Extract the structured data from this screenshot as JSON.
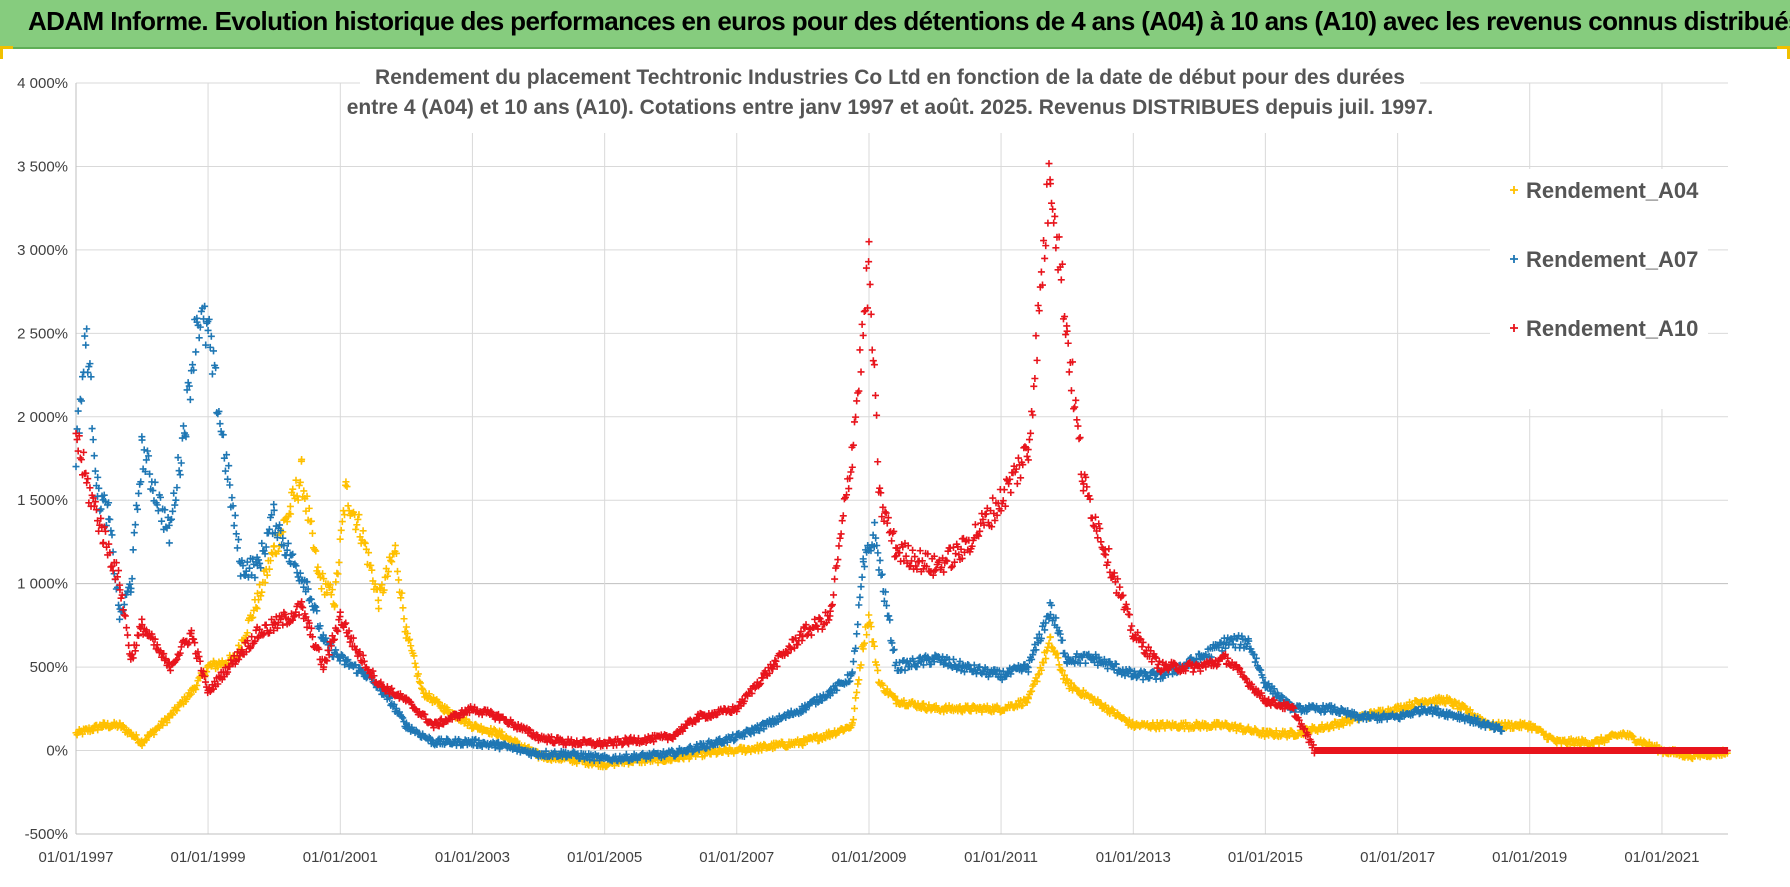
{
  "banner": {
    "text": "ADAM Informe. Evolution historique des performances en euros pour des détentions de 4 ans (A04) à 10 ans (A10) avec les revenus connus distribués"
  },
  "colors": {
    "banner_bg": "#86cc7e",
    "grid": "#d9d9d9",
    "A04": "#ffc000",
    "A07": "#1f77b4",
    "A10": "#e8141c"
  },
  "chart_data": {
    "type": "scatter",
    "title_lines": [
      "Rendement du placement Techtronic Industries Co Ltd en fonction de la date de début pour des durées",
      "entre 4 (A04) et 10 ans (A10).  Cotations entre janv 1997 et août. 2025. Revenus DISTRIBUES depuis juil. 1997."
    ],
    "x_ticks": [
      "01/01/1997",
      "01/01/1999",
      "01/01/2001",
      "01/01/2003",
      "01/01/2005",
      "01/01/2007",
      "01/01/2009",
      "01/01/2011",
      "01/01/2013",
      "01/01/2015",
      "01/01/2017",
      "01/01/2019",
      "01/01/2021"
    ],
    "xlim": [
      "1997-01-01",
      "2022-01-01"
    ],
    "y_ticks": [
      "4 000%",
      "3 500%",
      "3 000%",
      "2 500%",
      "2 000%",
      "1 500%",
      "1 000%",
      "500%",
      "0%",
      "-500%"
    ],
    "ylim": [
      -500,
      4000
    ],
    "grid": true,
    "legend_position": "top-right",
    "marker": "+",
    "series": [
      {
        "name": "Rendement_A04",
        "color": "#ffc000",
        "points": [
          [
            "1997-01-01",
            100
          ],
          [
            "1997-06-01",
            150
          ],
          [
            "1997-09-01",
            150
          ],
          [
            "1998-01-01",
            50
          ],
          [
            "1998-06-01",
            200
          ],
          [
            "1998-10-01",
            350
          ],
          [
            "1999-01-01",
            500
          ],
          [
            "1999-06-01",
            550
          ],
          [
            "1999-10-01",
            900
          ],
          [
            "2000-01-01",
            1200
          ],
          [
            "2000-04-01",
            1450
          ],
          [
            "2000-06-01",
            1650
          ],
          [
            "2000-09-01",
            1050
          ],
          [
            "2000-12-01",
            900
          ],
          [
            "2001-02-01",
            1550
          ],
          [
            "2001-05-01",
            1300
          ],
          [
            "2001-08-01",
            900
          ],
          [
            "2001-11-01",
            1200
          ],
          [
            "2002-01-01",
            700
          ],
          [
            "2002-04-01",
            350
          ],
          [
            "2002-08-01",
            250
          ],
          [
            "2003-01-01",
            150
          ],
          [
            "2003-06-01",
            100
          ],
          [
            "2004-01-01",
            -30
          ],
          [
            "2004-06-01",
            -50
          ],
          [
            "2005-01-01",
            -80
          ],
          [
            "2005-06-01",
            -60
          ],
          [
            "2006-01-01",
            -50
          ],
          [
            "2006-06-01",
            -20
          ],
          [
            "2007-01-01",
            0
          ],
          [
            "2007-06-01",
            20
          ],
          [
            "2008-01-01",
            50
          ],
          [
            "2008-06-01",
            100
          ],
          [
            "2008-10-01",
            150
          ],
          [
            "2008-12-01",
            650
          ],
          [
            "2009-01-01",
            800
          ],
          [
            "2009-03-01",
            400
          ],
          [
            "2009-06-01",
            300
          ],
          [
            "2010-01-01",
            250
          ],
          [
            "2010-06-01",
            250
          ],
          [
            "2011-01-01",
            250
          ],
          [
            "2011-06-01",
            300
          ],
          [
            "2011-10-01",
            650
          ],
          [
            "2012-01-01",
            400
          ],
          [
            "2012-06-01",
            300
          ],
          [
            "2013-01-01",
            150
          ],
          [
            "2013-06-01",
            150
          ],
          [
            "2014-01-01",
            150
          ],
          [
            "2014-06-01",
            150
          ],
          [
            "2015-01-01",
            100
          ],
          [
            "2015-06-01",
            100
          ],
          [
            "2016-01-01",
            150
          ],
          [
            "2016-06-01",
            200
          ],
          [
            "2017-01-01",
            250
          ],
          [
            "2017-06-01",
            300
          ],
          [
            "2017-10-01",
            300
          ],
          [
            "2018-01-01",
            250
          ],
          [
            "2018-06-01",
            150
          ],
          [
            "2019-01-01",
            150
          ],
          [
            "2019-06-01",
            50
          ],
          [
            "2020-01-01",
            50
          ],
          [
            "2020-06-01",
            100
          ],
          [
            "2021-01-01",
            0
          ],
          [
            "2021-06-01",
            -30
          ],
          [
            "2022-01-01",
            -10
          ]
        ]
      },
      {
        "name": "Rendement_A07",
        "color": "#1f77b4",
        "points": [
          [
            "1997-01-01",
            1800
          ],
          [
            "1997-03-01",
            2500
          ],
          [
            "1997-05-01",
            1550
          ],
          [
            "1997-07-01",
            1400
          ],
          [
            "1997-09-01",
            800
          ],
          [
            "1997-11-01",
            1000
          ],
          [
            "1998-01-01",
            1800
          ],
          [
            "1998-04-01",
            1500
          ],
          [
            "1998-06-01",
            1300
          ],
          [
            "1998-09-01",
            2000
          ],
          [
            "1998-11-01",
            2600
          ],
          [
            "1999-01-01",
            2500
          ],
          [
            "1999-04-01",
            1800
          ],
          [
            "1999-07-01",
            1100
          ],
          [
            "1999-10-01",
            1100
          ],
          [
            "2000-01-01",
            1400
          ],
          [
            "2000-04-01",
            1150
          ],
          [
            "2000-07-01",
            1000
          ],
          [
            "2000-10-01",
            650
          ],
          [
            "2001-01-01",
            550
          ],
          [
            "2001-06-01",
            450
          ],
          [
            "2001-10-01",
            300
          ],
          [
            "2002-01-01",
            150
          ],
          [
            "2002-06-01",
            50
          ],
          [
            "2003-01-01",
            50
          ],
          [
            "2003-06-01",
            30
          ],
          [
            "2004-01-01",
            -20
          ],
          [
            "2004-06-01",
            -20
          ],
          [
            "2005-01-01",
            -50
          ],
          [
            "2005-06-01",
            -40
          ],
          [
            "2006-01-01",
            -20
          ],
          [
            "2006-06-01",
            20
          ],
          [
            "2007-01-01",
            80
          ],
          [
            "2007-06-01",
            150
          ],
          [
            "2008-01-01",
            250
          ],
          [
            "2008-06-01",
            350
          ],
          [
            "2008-10-01",
            450
          ],
          [
            "2008-12-01",
            1100
          ],
          [
            "2009-02-01",
            1300
          ],
          [
            "2009-06-01",
            500
          ],
          [
            "2010-01-01",
            550
          ],
          [
            "2010-06-01",
            500
          ],
          [
            "2011-01-01",
            450
          ],
          [
            "2011-06-01",
            500
          ],
          [
            "2011-10-01",
            850
          ],
          [
            "2012-01-01",
            550
          ],
          [
            "2012-06-01",
            550
          ],
          [
            "2013-01-01",
            450
          ],
          [
            "2013-06-01",
            450
          ],
          [
            "2014-01-01",
            550
          ],
          [
            "2014-06-01",
            650
          ],
          [
            "2014-10-01",
            650
          ],
          [
            "2015-01-01",
            400
          ],
          [
            "2015-06-01",
            250
          ],
          [
            "2016-01-01",
            250
          ],
          [
            "2016-06-01",
            200
          ],
          [
            "2017-01-01",
            200
          ],
          [
            "2017-06-01",
            250
          ],
          [
            "2018-01-01",
            200
          ],
          [
            "2018-08-01",
            120
          ]
        ]
      },
      {
        "name": "Rendement_A10",
        "color": "#e8141c",
        "points": [
          [
            "1997-01-01",
            1900
          ],
          [
            "1997-03-01",
            1600
          ],
          [
            "1997-06-01",
            1300
          ],
          [
            "1997-09-01",
            1000
          ],
          [
            "1997-11-01",
            550
          ],
          [
            "1998-01-01",
            750
          ],
          [
            "1998-06-01",
            500
          ],
          [
            "1998-10-01",
            700
          ],
          [
            "1999-01-01",
            350
          ],
          [
            "1999-06-01",
            550
          ],
          [
            "1999-10-01",
            700
          ],
          [
            "2000-01-01",
            750
          ],
          [
            "2000-06-01",
            850
          ],
          [
            "2000-10-01",
            500
          ],
          [
            "2001-01-01",
            800
          ],
          [
            "2001-04-01",
            600
          ],
          [
            "2001-08-01",
            400
          ],
          [
            "2002-01-01",
            300
          ],
          [
            "2002-06-01",
            150
          ],
          [
            "2003-01-01",
            250
          ],
          [
            "2003-06-01",
            200
          ],
          [
            "2004-01-01",
            80
          ],
          [
            "2004-06-01",
            50
          ],
          [
            "2005-01-01",
            40
          ],
          [
            "2005-06-01",
            60
          ],
          [
            "2006-01-01",
            80
          ],
          [
            "2006-06-01",
            200
          ],
          [
            "2007-01-01",
            250
          ],
          [
            "2007-06-01",
            450
          ],
          [
            "2008-01-01",
            700
          ],
          [
            "2008-06-01",
            800
          ],
          [
            "2008-10-01",
            1800
          ],
          [
            "2009-01-01",
            2900
          ],
          [
            "2009-03-01",
            1500
          ],
          [
            "2009-06-01",
            1200
          ],
          [
            "2010-01-01",
            1100
          ],
          [
            "2010-06-01",
            1200
          ],
          [
            "2011-01-01",
            1500
          ],
          [
            "2011-06-01",
            1800
          ],
          [
            "2011-10-01",
            3500
          ],
          [
            "2012-01-01",
            2500
          ],
          [
            "2012-04-01",
            1600
          ],
          [
            "2012-08-01",
            1200
          ],
          [
            "2013-01-01",
            700
          ],
          [
            "2013-06-01",
            500
          ],
          [
            "2014-01-01",
            500
          ],
          [
            "2014-06-01",
            550
          ],
          [
            "2015-01-01",
            300
          ],
          [
            "2015-06-01",
            250
          ],
          [
            "2015-10-01",
            0
          ],
          [
            "2016-06-01",
            0
          ],
          [
            "2017-06-01",
            0
          ],
          [
            "2018-06-01",
            0
          ],
          [
            "2019-06-01",
            0
          ],
          [
            "2020-06-01",
            0
          ],
          [
            "2021-06-01",
            0
          ],
          [
            "2022-01-01",
            0
          ]
        ]
      }
    ]
  }
}
